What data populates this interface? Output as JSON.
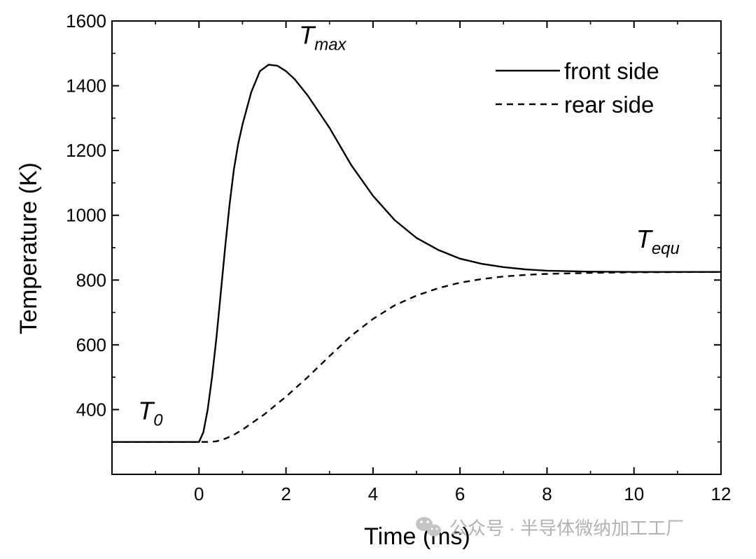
{
  "watermark": {
    "text": "公众号 · 半导体微纳加工工厂",
    "icon": "wechat-icon",
    "color": "#b3b3b3"
  },
  "chart_data": {
    "type": "line",
    "xlabel": "Time (ms)",
    "ylabel": "Temperature (K)",
    "xlim": [
      -2,
      12
    ],
    "ylim": [
      200,
      1600
    ],
    "xticks": [
      0,
      2,
      4,
      6,
      8,
      10,
      12
    ],
    "yticks": [
      400,
      600,
      800,
      1000,
      1200,
      1400,
      1600
    ],
    "xtick_labels": [
      "0",
      "2",
      "4",
      "6",
      "8",
      "10",
      "12"
    ],
    "ytick_labels": [
      "400",
      "600",
      "800",
      "1000",
      "1200",
      "1400",
      "1600"
    ],
    "grid": false,
    "legend_position": "top-right",
    "series": [
      {
        "name": "front side",
        "style": "solid",
        "color": "#000000",
        "points": [
          [
            -2,
            300
          ],
          [
            0,
            300
          ],
          [
            0.1,
            330
          ],
          [
            0.2,
            400
          ],
          [
            0.3,
            500
          ],
          [
            0.4,
            620
          ],
          [
            0.5,
            760
          ],
          [
            0.6,
            900
          ],
          [
            0.7,
            1030
          ],
          [
            0.8,
            1140
          ],
          [
            0.9,
            1220
          ],
          [
            1.0,
            1280
          ],
          [
            1.2,
            1380
          ],
          [
            1.4,
            1445
          ],
          [
            1.6,
            1465
          ],
          [
            1.8,
            1462
          ],
          [
            2.0,
            1445
          ],
          [
            2.2,
            1420
          ],
          [
            2.5,
            1370
          ],
          [
            3.0,
            1270
          ],
          [
            3.5,
            1155
          ],
          [
            4.0,
            1060
          ],
          [
            4.5,
            985
          ],
          [
            5.0,
            930
          ],
          [
            5.5,
            893
          ],
          [
            6.0,
            866
          ],
          [
            6.5,
            850
          ],
          [
            7.0,
            840
          ],
          [
            7.5,
            833
          ],
          [
            8.0,
            829
          ],
          [
            9.0,
            826
          ],
          [
            10.0,
            825
          ],
          [
            12.0,
            825
          ]
        ]
      },
      {
        "name": "rear side",
        "style": "dashed",
        "color": "#000000",
        "points": [
          [
            -2,
            300
          ],
          [
            0.2,
            300
          ],
          [
            0.4,
            302
          ],
          [
            0.6,
            310
          ],
          [
            0.8,
            322
          ],
          [
            1.0,
            338
          ],
          [
            1.5,
            385
          ],
          [
            2.0,
            440
          ],
          [
            2.5,
            500
          ],
          [
            3.0,
            565
          ],
          [
            3.5,
            628
          ],
          [
            4.0,
            680
          ],
          [
            4.5,
            722
          ],
          [
            5.0,
            752
          ],
          [
            5.5,
            775
          ],
          [
            6.0,
            792
          ],
          [
            6.5,
            803
          ],
          [
            7.0,
            811
          ],
          [
            7.5,
            816
          ],
          [
            8.0,
            819
          ],
          [
            9.0,
            822
          ],
          [
            10.0,
            824
          ],
          [
            12.0,
            825
          ]
        ]
      }
    ],
    "annotations": [
      {
        "main": "T",
        "sub": "0",
        "x": -1.4,
        "y": 370
      },
      {
        "main": "T",
        "sub": "max",
        "x": 2.3,
        "y": 1530
      },
      {
        "main": "T",
        "sub": "equ",
        "x": 10.05,
        "y": 900
      }
    ]
  }
}
